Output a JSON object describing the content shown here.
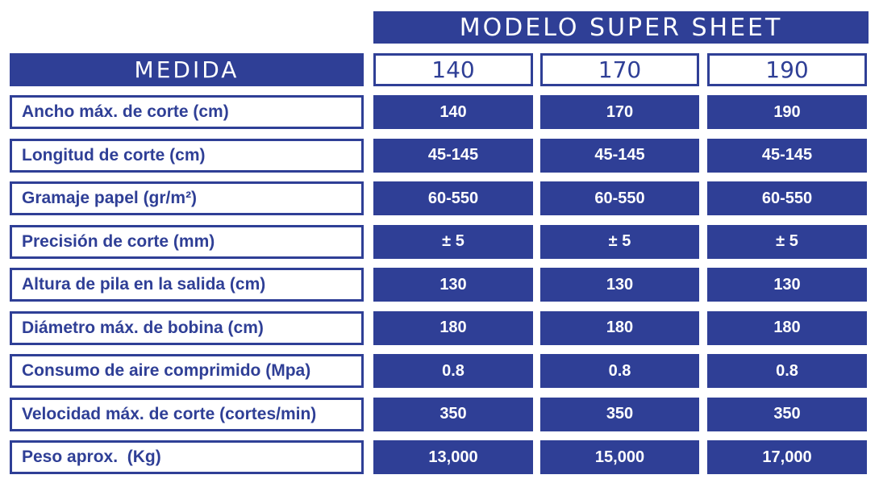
{
  "header": {
    "title": "MODELO SUPER SHEET"
  },
  "table": {
    "corner": "MEDIDA",
    "columns": [
      "140",
      "170",
      "190"
    ],
    "rows": [
      [
        "Ancho máx. de corte (cm)",
        "140",
        "170",
        "190"
      ],
      [
        "Longitud de corte (cm)",
        "45-145",
        "45-145",
        "45-145"
      ],
      [
        "Gramaje papel (gr/m²)",
        "60-550",
        "60-550",
        "60-550"
      ],
      [
        "Precisión de corte (mm)",
        "± 5",
        "± 5",
        "± 5"
      ],
      [
        "Altura de pila en la salida (cm)",
        "130",
        "130",
        "130"
      ],
      [
        "Diámetro máx. de bobina (cm)",
        "180",
        "180",
        "180"
      ],
      [
        "Consumo de aire comprimido (Mpa)",
        "0.8",
        "0.8",
        "0.8"
      ],
      [
        "Velocidad máx. de corte (cortes/min)",
        "350",
        "350",
        "350"
      ],
      [
        "Peso aprox.  (Kg)",
        "13,000",
        "15,000",
        "17,000"
      ]
    ]
  }
}
